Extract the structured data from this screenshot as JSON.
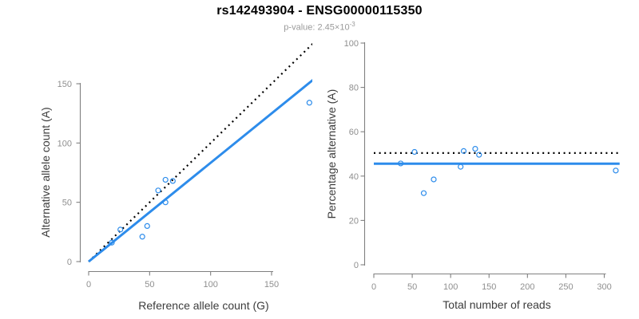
{
  "header": {
    "title": "rs142493904 - ENSG00000115350",
    "subtitle_prefix": "p-value: 2.45×10",
    "subtitle_exponent": "-3"
  },
  "colors": {
    "accent_blue": "#2d8ceb",
    "identity_black": "#000000",
    "axis_gray": "#808080",
    "tick_label_gray": "#8f8f8f",
    "axis_title_dark": "#3c3c3c",
    "subtitle_gray": "#9a9a9a"
  },
  "chart_data": [
    {
      "id": "allele-counts",
      "type": "scatter",
      "title": "",
      "xlabel": "Reference allele count (G)",
      "ylabel": "Alternative allele count (A)",
      "xlim": [
        0,
        150
      ],
      "ylim": [
        0,
        150
      ],
      "x_ticks": [
        0,
        50,
        100,
        150
      ],
      "y_ticks": [
        0,
        50,
        100,
        150
      ],
      "grid": false,
      "points": [
        [
          19,
          16
        ],
        [
          26,
          27
        ],
        [
          44,
          21
        ],
        [
          48,
          30
        ],
        [
          57,
          60
        ],
        [
          63,
          50
        ],
        [
          63,
          69
        ],
        [
          69,
          68
        ],
        [
          181,
          134
        ]
      ],
      "lines": [
        {
          "name": "identity-line",
          "kind": "ab",
          "intercept": 0,
          "slope": 1,
          "style": "dotted",
          "color": "#000000"
        },
        {
          "name": "fit-line",
          "kind": "ab",
          "intercept": 0,
          "slope": 0.833,
          "style": "solid",
          "color": "#2d8ceb"
        }
      ]
    },
    {
      "id": "percentage-vs-reads",
      "type": "scatter",
      "title": "",
      "xlabel": "Total number of reads",
      "ylabel": "Percentage alternative (A)",
      "xlim": [
        0,
        300
      ],
      "ylim": [
        0,
        100
      ],
      "x_ticks": [
        0,
        50,
        100,
        150,
        200,
        250,
        300
      ],
      "y_ticks": [
        0,
        20,
        40,
        60,
        80,
        100
      ],
      "grid": false,
      "points": [
        [
          35,
          45.7
        ],
        [
          53,
          50.9
        ],
        [
          65,
          32.3
        ],
        [
          78,
          38.5
        ],
        [
          113,
          44.2
        ],
        [
          117,
          51.3
        ],
        [
          132,
          52.3
        ],
        [
          137,
          49.6
        ],
        [
          315,
          42.5
        ]
      ],
      "lines": [
        {
          "name": "expected-50-line",
          "kind": "h",
          "y": 50.4,
          "style": "dotted",
          "color": "#000000"
        },
        {
          "name": "mean-percentage-line",
          "kind": "h",
          "y": 45.6,
          "style": "solid",
          "color": "#2d8ceb"
        }
      ]
    }
  ]
}
